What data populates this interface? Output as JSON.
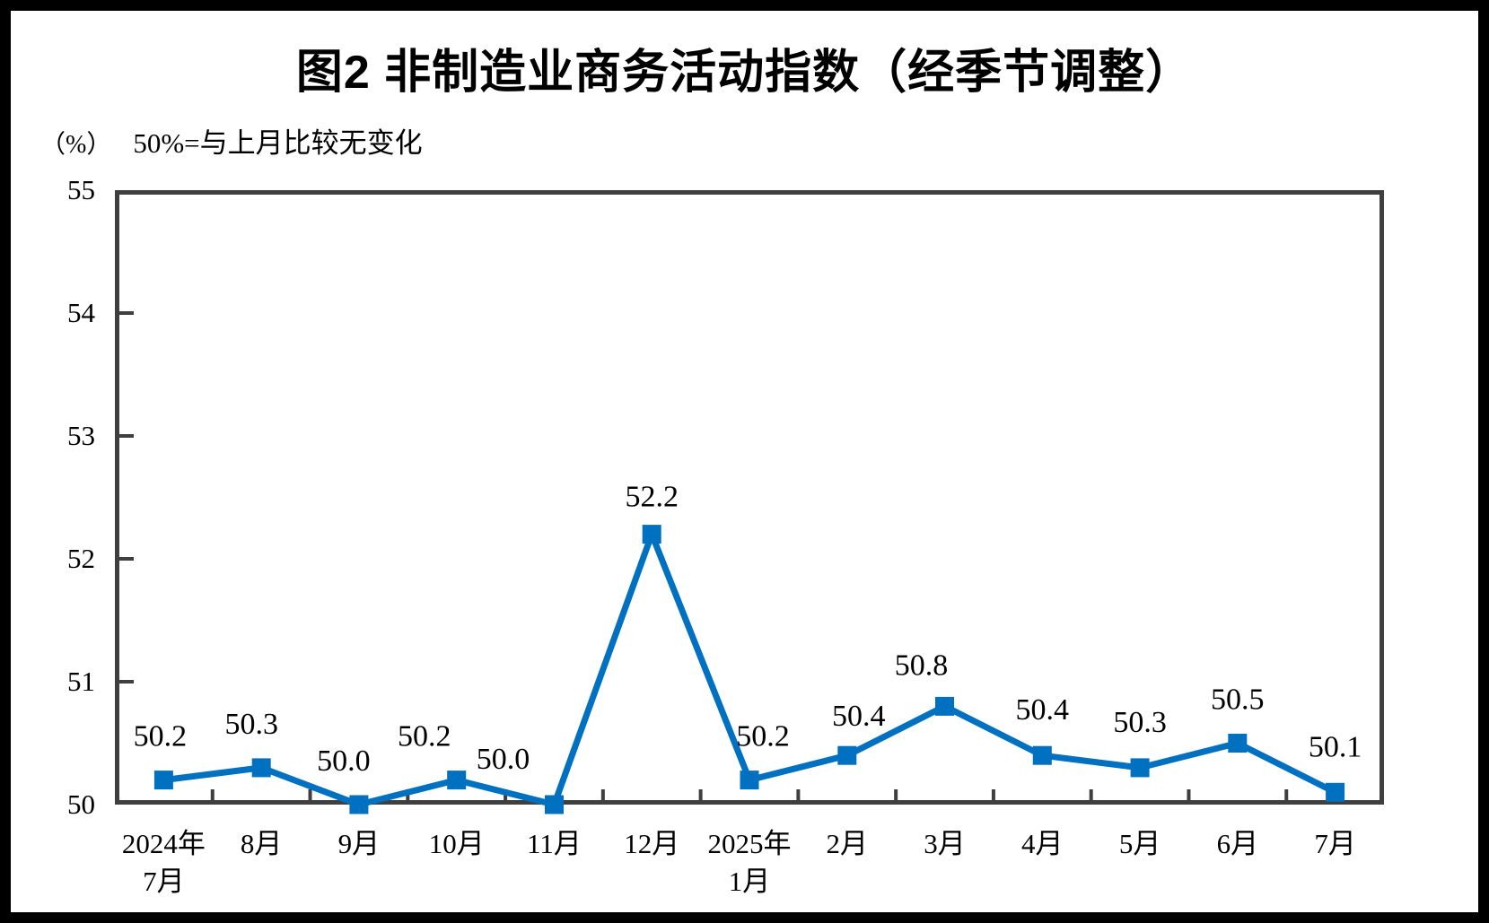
{
  "figure": {
    "title": "图2 非制造业商务活动指数（经季节调整）",
    "unit_label": "（%）",
    "note": "50%=与上月比较无变化"
  },
  "chart_data": {
    "type": "line",
    "title": "图2 非制造业商务活动指数（经季节调整）",
    "subtitle": "50%=与上月比较无变化",
    "ylabel": "（%）",
    "xlabel": "",
    "categories": [
      "2024年\n7月",
      "8月",
      "9月",
      "10月",
      "11月",
      "12月",
      "2025年\n1月",
      "2月",
      "3月",
      "4月",
      "5月",
      "6月",
      "7月"
    ],
    "series": [
      {
        "name": "非制造业商务活动指数",
        "values": [
          50.2,
          50.3,
          50.0,
          50.2,
          50.0,
          52.2,
          50.2,
          50.4,
          50.8,
          50.4,
          50.3,
          50.5,
          50.1
        ]
      }
    ],
    "data_labels": [
      "50.2",
      "50.3",
      "50.0",
      "50.2",
      "50.0",
      "52.2",
      "50.2",
      "50.4",
      "50.8",
      "50.4",
      "50.3",
      "50.5",
      "50.1"
    ],
    "ylim": [
      50,
      55
    ],
    "yticks": [
      50,
      51,
      52,
      53,
      54,
      55
    ],
    "grid": false,
    "legend_position": "none",
    "marker": "square",
    "line_color": "#0070C0",
    "axis_color": "#3F3F3F",
    "text_color": "#000000",
    "background_color": "#FFFFFF",
    "frame_color": "#000000"
  }
}
